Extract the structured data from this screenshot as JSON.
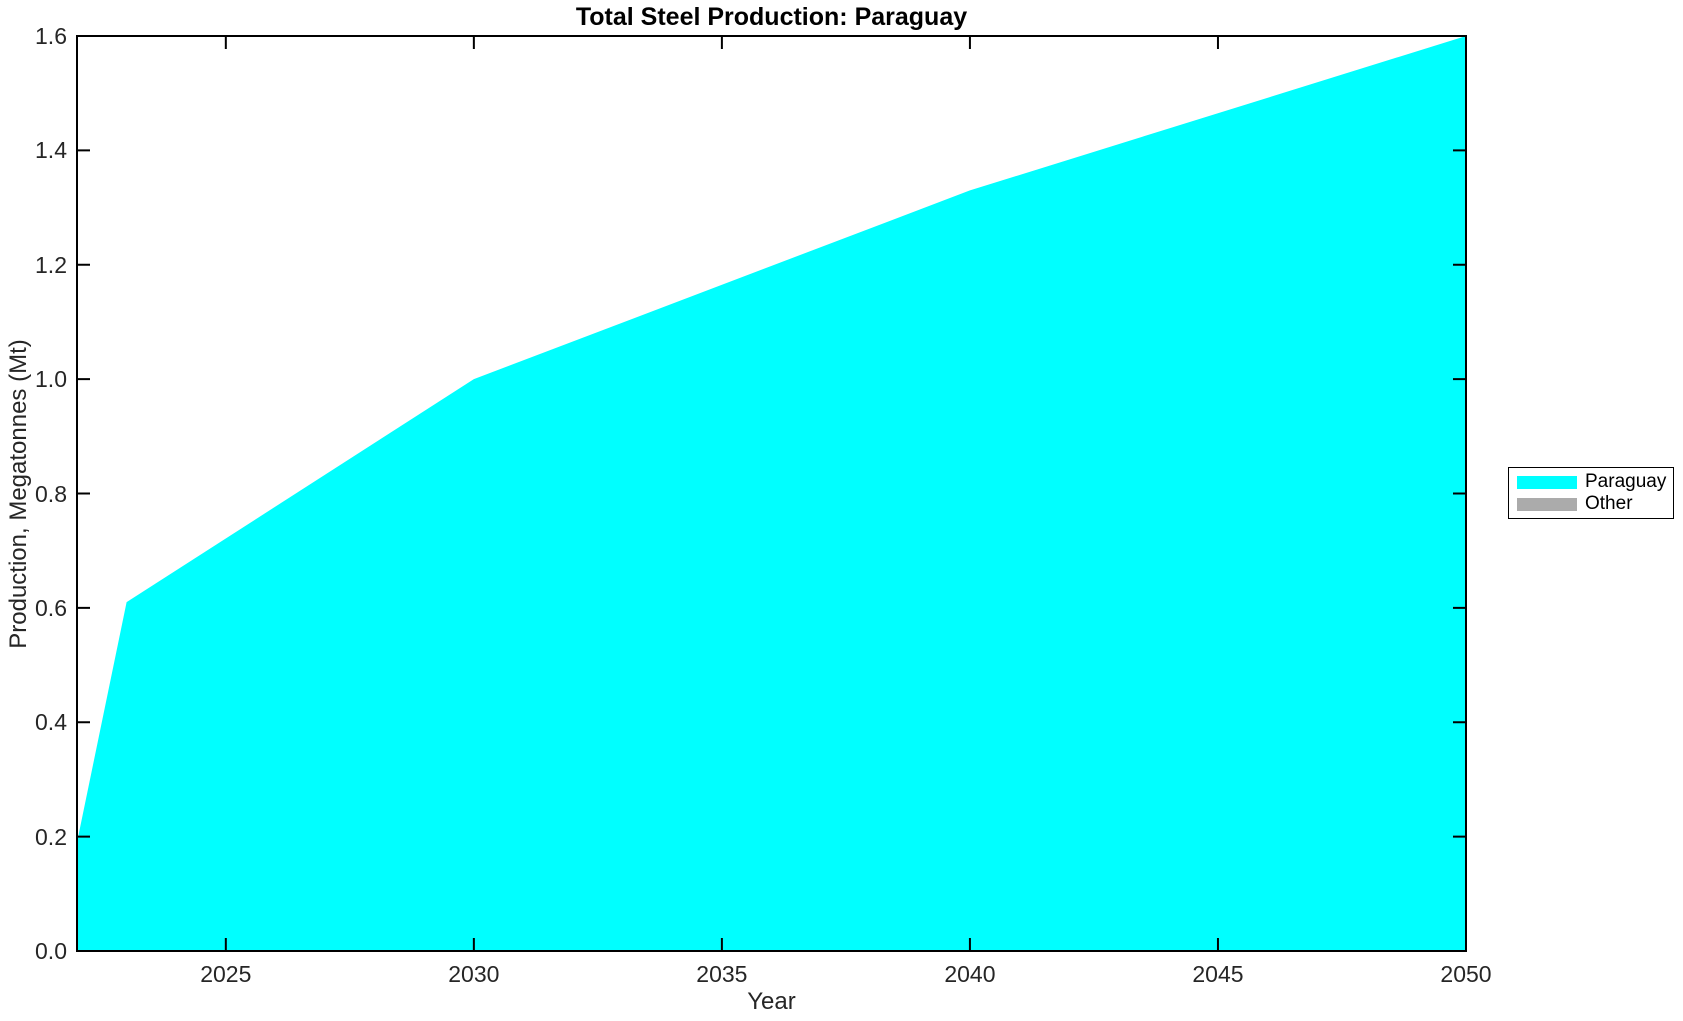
{
  "figure": {
    "title": "Total Steel Production: Paraguay"
  },
  "chart_data": {
    "type": "area",
    "title": "Total Steel Production: Paraguay",
    "xlabel": "Year",
    "ylabel": "Production, Megatonnes (Mt)",
    "xlim": [
      2022,
      2050
    ],
    "ylim": [
      0,
      1.6
    ],
    "x_ticks": [
      2025,
      2030,
      2035,
      2040,
      2045,
      2050
    ],
    "y_ticks": [
      "0.0",
      "0.2",
      "0.4",
      "0.6",
      "0.8",
      "1.0",
      "1.2",
      "1.4",
      "1.6"
    ],
    "grid": false,
    "legend_position": "right-outside",
    "axis_color": "#000000",
    "tick_label_color": "#262626",
    "series": [
      {
        "name": "Paraguay",
        "color": "#00FFFF",
        "x": [
          2022,
          2023,
          2030,
          2040,
          2050
        ],
        "values": [
          0.19,
          0.61,
          1.0,
          1.33,
          1.6
        ]
      },
      {
        "name": "Other",
        "color": "#ABABAB",
        "x": [
          2022,
          2023,
          2030,
          2040,
          2050
        ],
        "values": [
          0,
          0,
          0,
          0,
          0
        ]
      }
    ]
  }
}
